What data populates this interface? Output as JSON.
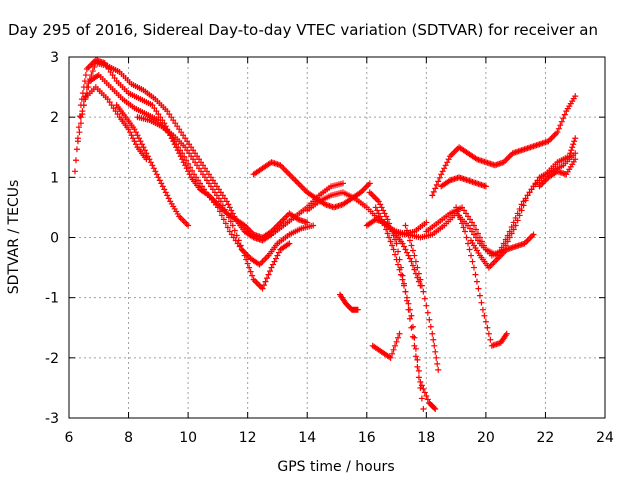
{
  "chart_data": {
    "type": "scatter",
    "title": "Day 295 of 2016, Sidereal Day-to-day VTEC variation (SDTVAR) for receiver an",
    "xlabel": "GPS time / hours",
    "ylabel": "SDTVAR / TECUs",
    "xlim": [
      6,
      24
    ],
    "ylim": [
      -3,
      3
    ],
    "x_ticks": [
      "6",
      "8",
      "10",
      "12",
      "14",
      "16",
      "18",
      "20",
      "22",
      "24"
    ],
    "y_ticks": [
      "-3",
      "-2",
      "-1",
      "0",
      "1",
      "2",
      "3"
    ],
    "grid": true,
    "marker": "+",
    "color": "#ff0000",
    "series": [
      {
        "x": [
          6.2,
          6.4,
          6.6,
          6.9,
          7.2,
          7.6,
          8.0,
          8.4,
          8.8,
          9.2,
          9.5,
          9.8,
          10.1,
          10.4,
          10.7,
          11.0,
          11.3,
          11.6,
          11.9,
          12.2,
          12.5,
          12.8,
          13.1,
          13.4,
          13.7,
          14.0
        ],
        "y": [
          1.1,
          2.2,
          2.8,
          2.95,
          2.9,
          2.6,
          2.4,
          2.3,
          2.2,
          1.9,
          1.6,
          1.3,
          1.0,
          0.8,
          0.7,
          0.55,
          0.4,
          0.3,
          0.2,
          0.05,
          0.0,
          0.1,
          0.25,
          0.4,
          0.3,
          0.25
        ]
      },
      {
        "x": [
          6.3,
          6.6,
          6.9,
          7.3,
          7.7,
          8.1,
          8.5,
          8.9,
          9.3,
          9.7,
          10.1,
          10.5,
          10.9,
          11.3,
          11.6,
          11.9,
          12.2,
          12.5,
          12.8,
          13.2,
          13.6,
          14.0,
          14.4,
          14.8,
          15.2
        ],
        "y": [
          1.6,
          2.5,
          2.9,
          2.85,
          2.75,
          2.55,
          2.45,
          2.3,
          2.1,
          1.8,
          1.5,
          1.2,
          0.9,
          0.6,
          0.3,
          0.1,
          0.0,
          -0.05,
          0.05,
          0.2,
          0.35,
          0.5,
          0.7,
          0.85,
          0.9
        ]
      },
      {
        "x": [
          6.4,
          6.7,
          7.0,
          7.4,
          7.8,
          8.2,
          8.6,
          9.0,
          9.4,
          9.8,
          10.2,
          10.6,
          11.0,
          11.4,
          11.8,
          12.1,
          12.4,
          12.7,
          13.0,
          13.4,
          13.8,
          14.2
        ],
        "y": [
          2.0,
          2.6,
          2.7,
          2.5,
          2.3,
          2.15,
          2.05,
          1.95,
          1.7,
          1.4,
          1.05,
          0.75,
          0.5,
          0.1,
          -0.2,
          -0.35,
          -0.45,
          -0.3,
          -0.1,
          0.05,
          0.15,
          0.2
        ]
      },
      {
        "x": [
          6.5,
          6.9,
          7.3,
          7.7,
          8.0,
          8.3,
          8.6
        ],
        "y": [
          2.3,
          2.5,
          2.3,
          2.0,
          1.8,
          1.5,
          1.3
        ]
      },
      {
        "x": [
          7.6,
          7.9,
          8.2,
          8.5,
          8.8,
          9.1,
          9.4,
          9.7,
          10.0
        ],
        "y": [
          2.2,
          2.0,
          1.8,
          1.5,
          1.2,
          0.9,
          0.6,
          0.35,
          0.2
        ]
      },
      {
        "x": [
          8.3,
          8.7,
          9.1,
          9.5,
          9.9,
          10.3,
          10.7,
          11.1,
          11.5,
          11.9,
          12.2,
          12.5,
          12.8,
          13.1,
          13.4
        ],
        "y": [
          2.0,
          1.95,
          1.85,
          1.7,
          1.5,
          1.2,
          0.9,
          0.6,
          0.2,
          -0.3,
          -0.7,
          -0.85,
          -0.5,
          -0.2,
          -0.1
        ]
      },
      {
        "x": [
          12.2,
          12.5,
          12.8,
          13.1,
          13.4,
          13.7,
          14.0,
          14.3,
          14.6,
          14.9,
          15.2,
          15.5,
          15.8,
          16.1
        ],
        "y": [
          1.05,
          1.15,
          1.25,
          1.2,
          1.05,
          0.9,
          0.75,
          0.65,
          0.55,
          0.5,
          0.55,
          0.65,
          0.75,
          0.9
        ]
      },
      {
        "x": [
          14.0,
          14.4,
          14.8,
          15.2,
          15.6,
          16.0,
          16.4,
          16.8,
          17.2,
          17.6,
          18.0
        ],
        "y": [
          0.45,
          0.6,
          0.7,
          0.75,
          0.65,
          0.5,
          0.3,
          0.15,
          0.05,
          0.1,
          0.25
        ]
      },
      {
        "x": [
          15.1,
          15.3,
          15.5,
          15.7
        ],
        "y": [
          -0.95,
          -1.1,
          -1.2,
          -1.2
        ]
      },
      {
        "x": [
          16.0,
          16.3,
          16.6,
          16.9,
          17.2,
          17.5,
          17.8
        ],
        "y": [
          0.2,
          0.3,
          0.25,
          0.1,
          -0.1,
          -0.4,
          -0.8
        ]
      },
      {
        "x": [
          16.1,
          16.4,
          16.7,
          17.0,
          17.3,
          17.6,
          17.9
        ],
        "y": [
          0.75,
          0.6,
          0.3,
          -0.1,
          -0.9,
          -1.8,
          -2.85
        ]
      },
      {
        "x": [
          16.3,
          16.6,
          16.9,
          17.2,
          17.5,
          17.8,
          18.1,
          18.3
        ],
        "y": [
          0.5,
          0.2,
          -0.2,
          -0.7,
          -1.3,
          -2.4,
          -2.75,
          -2.85
        ]
      },
      {
        "x": [
          16.2,
          16.5,
          16.8,
          17.1
        ],
        "y": [
          -1.8,
          -1.9,
          -2.0,
          -1.6
        ]
      },
      {
        "x": [
          17.3,
          17.6,
          17.9,
          18.2,
          18.4
        ],
        "y": [
          0.2,
          -0.3,
          -0.9,
          -1.6,
          -2.2
        ]
      },
      {
        "x": [
          17.0,
          17.4,
          17.8,
          18.2,
          18.6,
          19.0,
          19.4,
          19.8,
          20.2,
          20.6,
          21.0,
          21.4,
          21.8,
          22.2,
          22.6,
          23.0
        ],
        "y": [
          0.1,
          0.05,
          0.0,
          0.05,
          0.2,
          0.4,
          0.2,
          -0.1,
          -0.3,
          -0.2,
          0.2,
          0.7,
          1.0,
          1.1,
          1.2,
          1.4
        ]
      },
      {
        "x": [
          18.2,
          18.5,
          18.8,
          19.1,
          19.4,
          19.7,
          20.0,
          20.3,
          20.6,
          20.9,
          21.2,
          21.5,
          21.8,
          22.1,
          22.4,
          22.7,
          23.0
        ],
        "y": [
          0.7,
          1.05,
          1.35,
          1.5,
          1.4,
          1.3,
          1.25,
          1.2,
          1.25,
          1.4,
          1.45,
          1.5,
          1.55,
          1.6,
          1.75,
          2.1,
          2.35
        ]
      },
      {
        "x": [
          18.0,
          18.4,
          18.8,
          19.2,
          19.6,
          20.0,
          20.4,
          20.8,
          21.2,
          21.6,
          22.0,
          22.4,
          22.8,
          23.0
        ],
        "y": [
          0.1,
          0.25,
          0.4,
          0.5,
          0.2,
          -0.2,
          -0.3,
          0.1,
          0.55,
          0.85,
          1.05,
          1.25,
          1.35,
          1.65
        ]
      },
      {
        "x": [
          18.5,
          18.8,
          19.1,
          19.4,
          19.7,
          20.0
        ],
        "y": [
          0.85,
          0.95,
          1.0,
          0.95,
          0.9,
          0.85
        ]
      },
      {
        "x": [
          19.0,
          19.3,
          19.6,
          19.9,
          20.2,
          20.5,
          20.7
        ],
        "y": [
          0.5,
          0.1,
          -0.5,
          -1.2,
          -1.8,
          -1.75,
          -1.6
        ]
      },
      {
        "x": [
          19.5,
          19.8,
          20.1,
          20.4,
          20.7,
          21.0,
          21.3,
          21.6
        ],
        "y": [
          -0.05,
          -0.3,
          -0.5,
          -0.35,
          -0.2,
          -0.15,
          -0.1,
          0.05
        ]
      },
      {
        "x": [
          21.8,
          22.1,
          22.4,
          22.7,
          23.0
        ],
        "y": [
          0.85,
          1.0,
          1.1,
          1.05,
          1.3
        ]
      }
    ]
  }
}
